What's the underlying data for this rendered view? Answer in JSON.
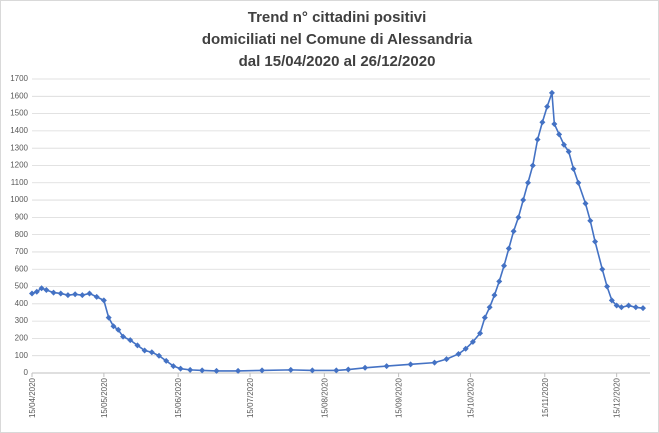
{
  "chart_data": {
    "type": "line",
    "title": [
      "Trend n° cittadini positivi",
      "domiciliati nel Comune di Alessandria",
      "dal 15/04/2020 al 26/12/2020"
    ],
    "x": [
      "15/04/2020",
      "17/04/2020",
      "19/04/2020",
      "21/04/2020",
      "24/04/2020",
      "27/04/2020",
      "30/04/2020",
      "03/05/2020",
      "06/05/2020",
      "09/05/2020",
      "12/05/2020",
      "15/05/2020",
      "17/05/2020",
      "19/05/2020",
      "21/05/2020",
      "23/05/2020",
      "26/05/2020",
      "29/05/2020",
      "01/06/2020",
      "04/06/2020",
      "07/06/2020",
      "10/06/2020",
      "13/06/2020",
      "16/06/2020",
      "20/06/2020",
      "25/06/2020",
      "01/07/2020",
      "10/07/2020",
      "20/07/2020",
      "01/08/2020",
      "10/08/2020",
      "20/08/2020",
      "25/08/2020",
      "01/09/2020",
      "10/09/2020",
      "20/09/2020",
      "30/09/2020",
      "05/10/2020",
      "10/10/2020",
      "13/10/2020",
      "16/10/2020",
      "19/10/2020",
      "21/10/2020",
      "23/10/2020",
      "25/10/2020",
      "27/10/2020",
      "29/10/2020",
      "31/10/2020",
      "02/11/2020",
      "04/11/2020",
      "06/11/2020",
      "08/11/2020",
      "10/11/2020",
      "12/11/2020",
      "14/11/2020",
      "16/11/2020",
      "18/11/2020",
      "19/11/2020",
      "21/11/2020",
      "23/11/2020",
      "25/11/2020",
      "27/11/2020",
      "29/11/2020",
      "02/12/2020",
      "04/12/2020",
      "06/12/2020",
      "09/12/2020",
      "11/12/2020",
      "13/12/2020",
      "15/12/2020",
      "17/12/2020",
      "20/12/2020",
      "23/12/2020",
      "26/12/2020"
    ],
    "series": [
      {
        "name": "positivi",
        "color": "#4472c4",
        "values": [
          460,
          470,
          490,
          480,
          465,
          460,
          450,
          455,
          450,
          460,
          440,
          420,
          320,
          270,
          250,
          210,
          190,
          160,
          130,
          120,
          100,
          70,
          40,
          25,
          18,
          15,
          12,
          12,
          15,
          18,
          15,
          15,
          20,
          30,
          40,
          50,
          60,
          80,
          110,
          140,
          180,
          230,
          320,
          380,
          450,
          530,
          620,
          720,
          820,
          900,
          1000,
          1100,
          1200,
          1350,
          1450,
          1540,
          1620,
          1440,
          1380,
          1320,
          1280,
          1180,
          1100,
          980,
          880,
          760,
          600,
          500,
          420,
          390,
          380,
          390,
          380,
          375
        ]
      }
    ],
    "ylim": [
      0,
      1700
    ],
    "yticks": [
      0,
      100,
      200,
      300,
      400,
      500,
      600,
      700,
      800,
      900,
      1000,
      1100,
      1200,
      1300,
      1400,
      1500,
      1600,
      1700
    ],
    "xticks": [
      "15/04/2020",
      "15/05/2020",
      "15/06/2020",
      "15/07/2020",
      "15/08/2020",
      "15/09/2020",
      "15/10/2020",
      "15/11/2020",
      "15/12/2020"
    ],
    "grid": true
  }
}
